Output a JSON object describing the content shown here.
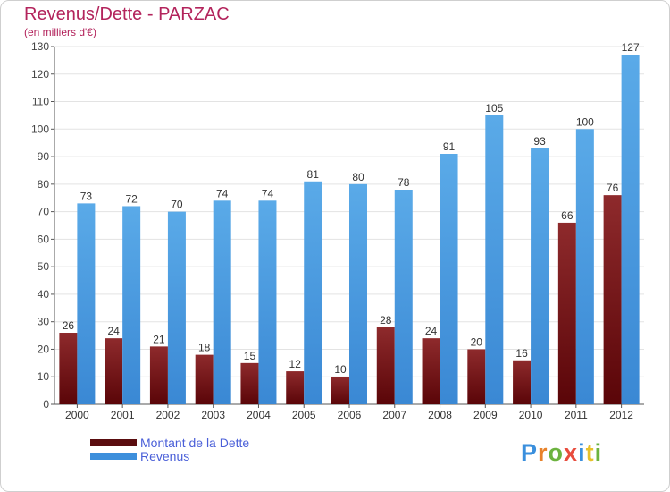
{
  "chart_data": {
    "type": "bar",
    "title": "Revenus/Dette - PARZAC",
    "subtitle": "(en milliers d'€)",
    "categories": [
      "2000",
      "2001",
      "2002",
      "2003",
      "2004",
      "2005",
      "2006",
      "2007",
      "2008",
      "2009",
      "2010",
      "2011",
      "2012"
    ],
    "series": [
      {
        "name": "Montant de la Dette",
        "color": "#7a1417",
        "values": [
          26,
          24,
          21,
          18,
          15,
          12,
          10,
          28,
          24,
          20,
          16,
          66,
          76
        ]
      },
      {
        "name": "Revenus",
        "color": "#4f9fe2",
        "values": [
          73,
          72,
          70,
          74,
          74,
          81,
          80,
          78,
          91,
          105,
          93,
          100,
          127
        ]
      }
    ],
    "ylim": [
      0,
      130
    ],
    "yticks": [
      0,
      10,
      20,
      30,
      40,
      50,
      60,
      70,
      80,
      90,
      100,
      110,
      120,
      130
    ],
    "grid": true,
    "legend": "bottom-left"
  },
  "logo": {
    "letters": [
      {
        "ch": "P",
        "color": "#3a8fdd"
      },
      {
        "ch": "r",
        "color": "#e8822a"
      },
      {
        "ch": "o",
        "color": "#6cb33f"
      },
      {
        "ch": "x",
        "color": "#e84c3d"
      },
      {
        "ch": "i",
        "color": "#3a8fdd"
      },
      {
        "ch": "t",
        "color": "#e8c12a"
      },
      {
        "ch": "i",
        "color": "#6cb33f"
      }
    ]
  }
}
